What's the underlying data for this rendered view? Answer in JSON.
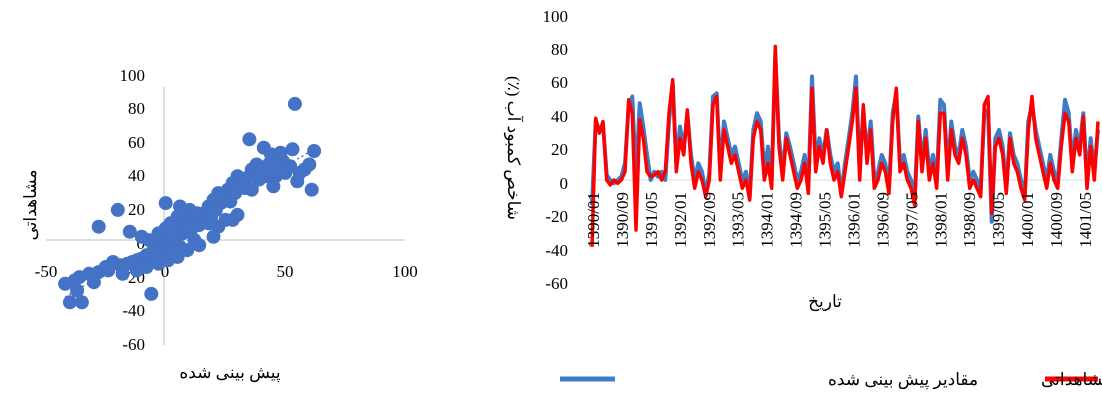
{
  "colors": {
    "predicted": "#3d7cc6",
    "observed": "#ff0000",
    "axis": "#bfbfbf",
    "scatter": "#4472c4"
  },
  "chart_data": [
    {
      "type": "scatter",
      "xlabel": "پیش بینی شده",
      "ylabel": "مشاهداتی",
      "xlim": [
        -50,
        100
      ],
      "ylim": [
        -60,
        100
      ],
      "x_ticks": [
        "-50",
        "0",
        "50",
        "100"
      ],
      "y_ticks": [
        "-60",
        "-40",
        "-20",
        "0",
        "20",
        "40",
        "60",
        "80",
        "100"
      ],
      "grid": false,
      "trendline": true,
      "points": [
        [
          54,
          81
        ],
        [
          35,
          60
        ],
        [
          62,
          53
        ],
        [
          48,
          52
        ],
        [
          53,
          54
        ],
        [
          44,
          51
        ],
        [
          41,
          55
        ],
        [
          45,
          48
        ],
        [
          49,
          47
        ],
        [
          52,
          44
        ],
        [
          47,
          42
        ],
        [
          43,
          45
        ],
        [
          38,
          45
        ],
        [
          40,
          40
        ],
        [
          36,
          42
        ],
        [
          42,
          38
        ],
        [
          46,
          38
        ],
        [
          39,
          36
        ],
        [
          34,
          37
        ],
        [
          30,
          38
        ],
        [
          32,
          35
        ],
        [
          28,
          34
        ],
        [
          33,
          31
        ],
        [
          36,
          30
        ],
        [
          26,
          30
        ],
        [
          29,
          28
        ],
        [
          24,
          27
        ],
        [
          22,
          28
        ],
        [
          61,
          30
        ],
        [
          55,
          35
        ],
        [
          25,
          25
        ],
        [
          20,
          24
        ],
        [
          23,
          22
        ],
        [
          27,
          23
        ],
        [
          18,
          20
        ],
        [
          21,
          18
        ],
        [
          16,
          16
        ],
        [
          19,
          14
        ],
        [
          15,
          12
        ],
        [
          12,
          13
        ],
        [
          10,
          11
        ],
        [
          14,
          9
        ],
        [
          8,
          10
        ],
        [
          6,
          8
        ],
        [
          11,
          7
        ],
        [
          9,
          5
        ],
        [
          7,
          4
        ],
        [
          5,
          3
        ],
        [
          3,
          2
        ],
        [
          4,
          6
        ],
        [
          2,
          1
        ],
        [
          1,
          0
        ],
        [
          0,
          -1
        ],
        [
          -1,
          -2
        ],
        [
          -2,
          -3
        ],
        [
          -3,
          -4
        ],
        [
          -4,
          -5
        ],
        [
          -5,
          -6
        ],
        [
          1,
          4
        ],
        [
          -2,
          2
        ],
        [
          3,
          -2
        ],
        [
          6,
          -4
        ],
        [
          4,
          -6
        ],
        [
          2,
          -8
        ],
        [
          -1,
          -9
        ],
        [
          -4,
          -8
        ],
        [
          -6,
          -10
        ],
        [
          -8,
          -9
        ],
        [
          -10,
          -11
        ],
        [
          -12,
          -12
        ],
        [
          -14,
          -13
        ],
        [
          -16,
          -14
        ],
        [
          -19,
          -15
        ],
        [
          -22,
          -13
        ],
        [
          -25,
          -16
        ],
        [
          -28,
          -19
        ],
        [
          -32,
          -20
        ],
        [
          -36,
          -22
        ],
        [
          -38,
          -24
        ],
        [
          -42,
          -26
        ],
        [
          -37,
          -30
        ],
        [
          -40,
          -37
        ],
        [
          -35,
          -37
        ],
        [
          -6,
          -32
        ],
        [
          0,
          22
        ],
        [
          6,
          20
        ],
        [
          10,
          18
        ],
        [
          13,
          16
        ],
        [
          -20,
          18
        ],
        [
          -28,
          8
        ],
        [
          -15,
          5
        ],
        [
          -10,
          2
        ],
        [
          -7,
          0
        ],
        [
          -3,
          4
        ],
        [
          0,
          7
        ],
        [
          2,
          10
        ],
        [
          5,
          14
        ],
        [
          8,
          15
        ],
        [
          25,
          12
        ],
        [
          20,
          2
        ],
        [
          28,
          12
        ],
        [
          30,
          15
        ],
        [
          22,
          8
        ],
        [
          18,
          10
        ],
        [
          12,
          0
        ],
        [
          14,
          -3
        ],
        [
          9,
          -6
        ],
        [
          5,
          -10
        ],
        [
          1,
          -12
        ],
        [
          -3,
          -14
        ],
        [
          -8,
          -16
        ],
        [
          -12,
          -18
        ],
        [
          -18,
          -20
        ],
        [
          -24,
          -18
        ],
        [
          -30,
          -25
        ],
        [
          60,
          45
        ],
        [
          58,
          42
        ],
        [
          56,
          40
        ],
        [
          50,
          40
        ],
        [
          45,
          32
        ]
      ]
    },
    {
      "type": "line",
      "xlabel": "تاریخ",
      "ylabel": "شاخص کمبود آب (٪)",
      "ylim": [
        -60,
        100
      ],
      "y_ticks": [
        "-60",
        "-40",
        "-20",
        "0",
        "20",
        "40",
        "60",
        "80",
        "100"
      ],
      "x_tick_labels": [
        "1390/01",
        "1390/09",
        "1391/05",
        "1392/01",
        "1392/09",
        "1393/05",
        "1394/01",
        "1394/09",
        "1395/05",
        "1396/01",
        "1396/09",
        "1397/05",
        "1398/01",
        "1398/09",
        "1399/05",
        "1400/01",
        "1400/09",
        "1401/05"
      ],
      "legend_position": "bottom",
      "series": [
        {
          "name": "مقادیر پیش بینی شده",
          "values": [
            -15,
            35,
            30,
            33,
            3,
            0,
            -2,
            0,
            2,
            10,
            45,
            50,
            0,
            46,
            32,
            15,
            0,
            5,
            2,
            5,
            0,
            35,
            58,
            10,
            32,
            18,
            40,
            15,
            0,
            10,
            5,
            -8,
            4,
            50,
            52,
            5,
            35,
            25,
            15,
            20,
            10,
            0,
            5,
            -10,
            30,
            40,
            35,
            5,
            20,
            0,
            75,
            25,
            5,
            28,
            20,
            10,
            0,
            5,
            15,
            -5,
            62,
            10,
            25,
            15,
            30,
            15,
            5,
            10,
            -8,
            10,
            25,
            40,
            62,
            5,
            42,
            15,
            35,
            0,
            5,
            15,
            10,
            -5,
            40,
            52,
            10,
            15,
            5,
            0,
            -10,
            38,
            10,
            30,
            5,
            15,
            0,
            48,
            45,
            5,
            35,
            20,
            15,
            30,
            20,
            0,
            5,
            0,
            -5,
            40,
            42,
            -25,
            25,
            30,
            20,
            -5,
            28,
            15,
            10,
            0,
            -10,
            35,
            45,
            30,
            20,
            10,
            0,
            15,
            5,
            0,
            25,
            48,
            40,
            10,
            30,
            20,
            40,
            0,
            25,
            5,
            30
          ],
          "color": "#3d7cc6"
        },
        {
          "name": "مقادیر مشاهداتی",
          "values": [
            -40,
            37,
            28,
            35,
            0,
            -3,
            0,
            -2,
            0,
            5,
            48,
            40,
            -30,
            36,
            25,
            5,
            2,
            3,
            5,
            0,
            5,
            40,
            60,
            5,
            25,
            15,
            42,
            10,
            -5,
            5,
            0,
            -10,
            0,
            45,
            50,
            0,
            30,
            20,
            10,
            15,
            5,
            -5,
            0,
            -12,
            25,
            35,
            30,
            0,
            10,
            -5,
            80,
            20,
            0,
            25,
            15,
            5,
            -5,
            0,
            10,
            -8,
            55,
            5,
            20,
            10,
            30,
            10,
            0,
            5,
            -10,
            5,
            20,
            35,
            55,
            0,
            45,
            10,
            30,
            -5,
            0,
            10,
            5,
            -8,
            35,
            55,
            5,
            10,
            0,
            -5,
            -15,
            35,
            5,
            25,
            0,
            10,
            -5,
            40,
            40,
            0,
            30,
            15,
            10,
            25,
            15,
            -5,
            0,
            -5,
            -10,
            45,
            50,
            -20,
            20,
            25,
            15,
            -8,
            25,
            10,
            5,
            -5,
            -12,
            30,
            50,
            25,
            15,
            5,
            -5,
            10,
            0,
            -5,
            20,
            40,
            35,
            5,
            25,
            15,
            38,
            -5,
            20,
            0,
            35
          ],
          "color": "#ff0000"
        }
      ]
    }
  ]
}
